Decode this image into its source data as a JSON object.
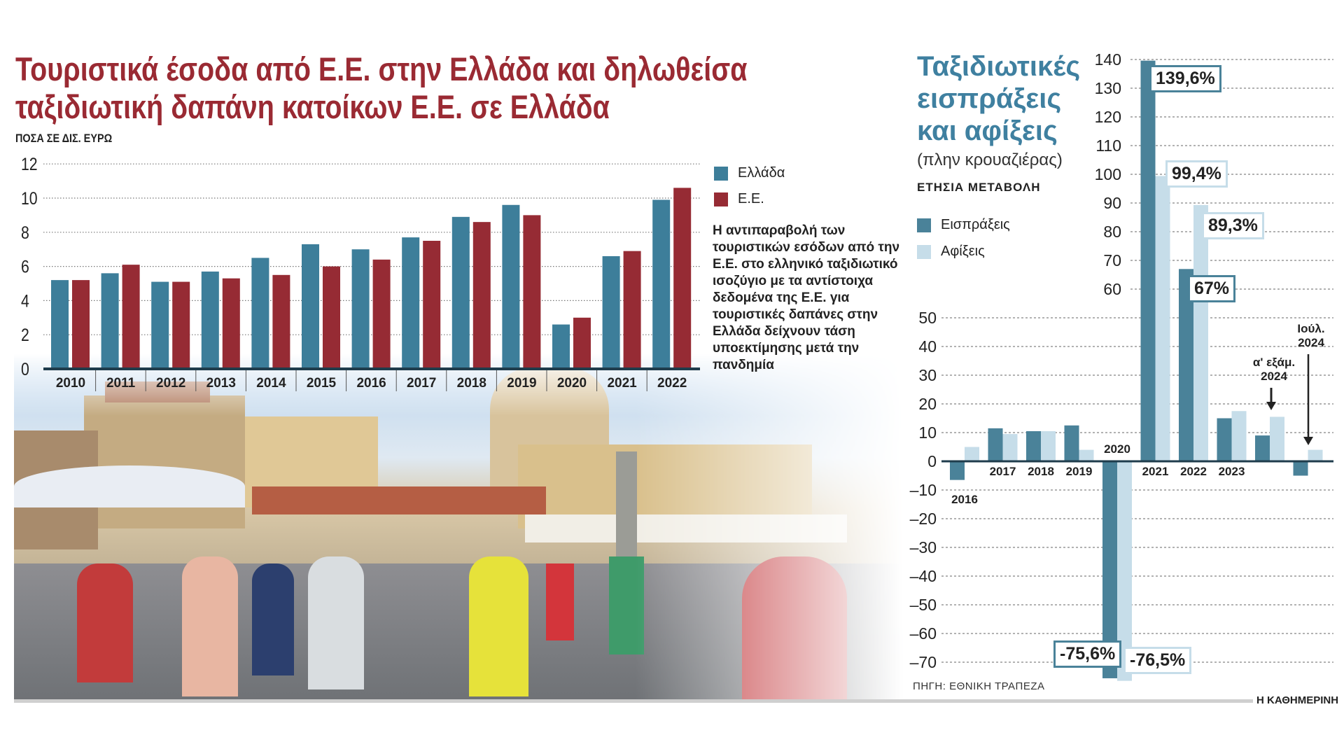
{
  "left": {
    "title_line1": "Τουριστικά έσοδα από Ε.Ε. στην Ελλάδα και δηλωθείσα",
    "title_line2": "ταξιδιωτική δαπάνη κατοίκων Ε.Ε. σε Ελλάδα",
    "unit": "ΠΟΣΑ ΣΕ ΔΙΣ. ΕΥΡΩ",
    "legend": [
      "Ελλάδα",
      "Ε.Ε."
    ],
    "note": "Η αντιπαραβολή των τουριστικών εσόδων από την Ε.Ε. στο ελληνικό ταξιδιωτικό ισοζύγιο με τα αντίστοιχα δεδομένα της Ε.Ε. για τουριστικές δαπάνες στην Ελλάδα δείχνουν τάση υποεκτίμησης μετά την πανδημία"
  },
  "right": {
    "title_line1": "Ταξιδιωτικές",
    "title_line2": "εισπράξεις",
    "title_line3": "και αφίξεις",
    "subtitle": "(πλην κρουαζιέρας)",
    "annual_label": "ΕΤΗΣΙΑ ΜΕΤΑΒΟΛΗ",
    "legend": [
      "Εισπράξεις",
      "Αφίξεις"
    ],
    "callouts": [
      "139,6%",
      "99,4%",
      "89,3%",
      "67%",
      "-75,6%",
      "-76,5%"
    ],
    "annotation_h1": [
      "α' εξάμ.",
      "2024"
    ],
    "annotation_jul": [
      "Ιούλ.",
      "2024"
    ],
    "source": "ΠΗΓΗ: ΕΘΝΙΚΗ ΤΡΑΠΕΖΑ"
  },
  "brand": "Η ΚΑΘΗΜΕΡΙΝΗ",
  "colors": {
    "greece": "#3d7e9a",
    "eu": "#962b34",
    "receipts": "#4a8299",
    "arrivals": "#c6dde9",
    "title_red": "#9a2a33",
    "title_teal": "#3f80a0"
  },
  "chart_data": [
    {
      "type": "bar",
      "title": "Τουριστικά έσοδα από Ε.Ε. στην Ελλάδα και δηλωθείσα ταξιδιωτική δαπάνη κατοίκων Ε.Ε. σε Ελλάδα",
      "ylabel": "ΠΟΣΑ ΣΕ ΔΙΣ. ΕΥΡΩ",
      "ylim": [
        0,
        12
      ],
      "yticks": [
        0,
        2,
        4,
        6,
        8,
        10,
        12
      ],
      "grid": true,
      "legend_position": "right",
      "categories": [
        "2010",
        "2011",
        "2012",
        "2013",
        "2014",
        "2015",
        "2016",
        "2017",
        "2018",
        "2019",
        "2020",
        "2021",
        "2022"
      ],
      "series": [
        {
          "name": "Ελλάδα",
          "values": [
            5.2,
            5.6,
            5.1,
            5.7,
            6.5,
            7.3,
            7.0,
            7.7,
            8.9,
            9.6,
            2.6,
            6.6,
            9.9
          ]
        },
        {
          "name": "Ε.Ε.",
          "values": [
            5.2,
            6.1,
            5.1,
            5.3,
            5.5,
            6.0,
            6.4,
            7.5,
            8.6,
            9.0,
            3.0,
            6.9,
            10.6
          ]
        }
      ]
    },
    {
      "type": "bar",
      "title": "Ταξιδιωτικές εισπράξεις και αφίξεις (πλην κρουαζιέρας)",
      "ylabel": "ΕΤΗΣΙΑ ΜΕΤΑΒΟΛΗ (%)",
      "ylim": [
        -80,
        140
      ],
      "yticks": [
        -70,
        -60,
        -50,
        -40,
        -30,
        -20,
        -10,
        0,
        10,
        20,
        30,
        40,
        50,
        60,
        70,
        80,
        90,
        100,
        110,
        120,
        130,
        140
      ],
      "grid": true,
      "legend_position": "top-left",
      "categories": [
        "2016",
        "2017",
        "2018",
        "2019",
        "2020",
        "2021",
        "2022",
        "2023",
        "α' εξάμ. 2024",
        "Ιούλ. 2024"
      ],
      "category_labels": [
        "2016",
        "2017",
        "2018",
        "2019",
        "2020",
        "2021",
        "2022",
        "2023",
        "",
        ""
      ],
      "series": [
        {
          "name": "Εισπράξεις",
          "values": [
            -6.5,
            11.5,
            10.5,
            12.5,
            -75.6,
            139.6,
            67,
            15,
            9,
            -5
          ]
        },
        {
          "name": "Αφίξεις",
          "values": [
            5,
            9.5,
            10.5,
            4,
            -76.5,
            99.4,
            89.3,
            17.5,
            15.5,
            4
          ]
        }
      ]
    }
  ]
}
